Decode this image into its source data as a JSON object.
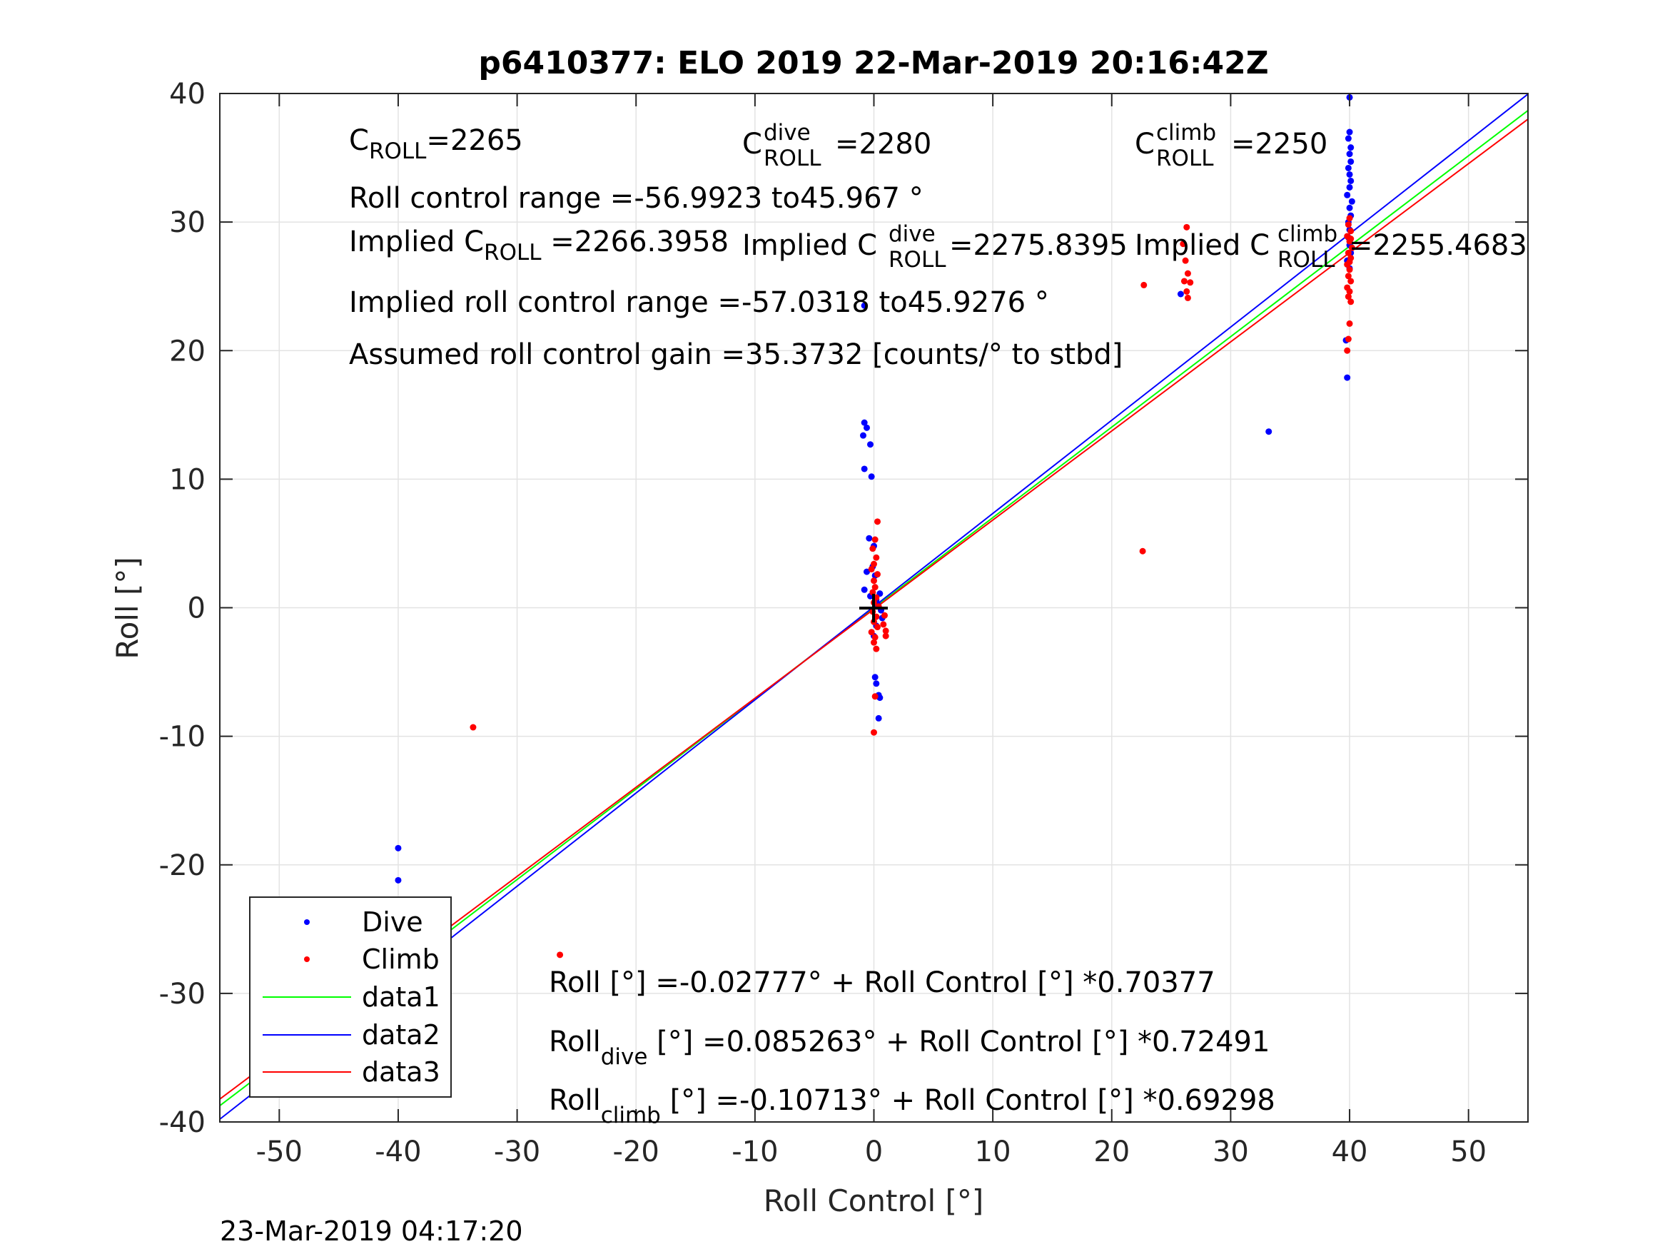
{
  "chart_data": {
    "type": "scatter",
    "title": "p6410377: ELO 2019 22-Mar-2019 20:16:42Z",
    "xlabel": "Roll Control [°]",
    "ylabel": "Roll [°]",
    "xlim": [
      -55,
      55
    ],
    "ylim": [
      -40,
      40
    ],
    "xticks": [
      -50,
      -40,
      -30,
      -20,
      -10,
      0,
      10,
      20,
      30,
      40,
      50
    ],
    "yticks": [
      -40,
      -30,
      -20,
      -10,
      0,
      10,
      20,
      30,
      40
    ],
    "grid": true,
    "legend_position": "bottom-left",
    "timestamp": "23-Mar-2019 04:17:20",
    "annotations": {
      "c_roll": {
        "base": "C",
        "sub": "ROLL",
        "value": "=2265"
      },
      "c_roll_dive": {
        "base": "C",
        "sup": "dive",
        "sub": "ROLL",
        "value": "=2280"
      },
      "c_roll_climb": {
        "base": "C",
        "sup": "climb",
        "sub": "ROLL",
        "value": "=2250"
      },
      "roll_control_range": "Roll control range =-56.9923 to45.967 °",
      "implied_c_roll": {
        "prefix": "Implied C",
        "sub": "ROLL",
        "value": " =2266.3958"
      },
      "implied_c_roll_dive": {
        "prefix": "Implied C",
        "sup": "dive",
        "sub": "ROLL",
        "value": " =2275.8395"
      },
      "implied_c_roll_climb": {
        "prefix": "Implied C",
        "sup": "climb",
        "sub": "ROLL",
        "value": "=2255.4683"
      },
      "implied_range": "Implied roll control range =-57.0318 to45.9276 °",
      "assumed_gain": "Assumed roll control gain =35.3732 [counts/° to stbd]",
      "fit_all": "Roll [°] =-0.02777° + Roll Control [°] *0.70377",
      "fit_dive": {
        "base": "Roll",
        "sub": "dive",
        "rest": " [°] =0.085263° + Roll Control [°] *0.72491"
      },
      "fit_climb": {
        "base": "Roll",
        "sub": "climb",
        "rest": " [°] =-0.10713° + Roll Control [°] *0.69298"
      }
    },
    "series": [
      {
        "name": "Dive",
        "kind": "points",
        "color": "#0000ff",
        "points": [
          [
            -40,
            -18.7
          ],
          [
            -40,
            -21.2
          ],
          [
            -40,
            -25.6
          ],
          [
            -40.2,
            -26.3
          ],
          [
            -39.8,
            -26.8
          ],
          [
            -40,
            -27.4
          ],
          [
            -40.1,
            -27.9
          ],
          [
            -39.9,
            -28.3
          ],
          [
            -40,
            -28.8
          ],
          [
            -40.2,
            -29.3
          ],
          [
            -39.8,
            -29.8
          ],
          [
            -40,
            -27.1
          ],
          [
            -40.1,
            -28.6
          ],
          [
            -0.8,
            23.5
          ],
          [
            -0.8,
            14.4
          ],
          [
            -0.6,
            14.0
          ],
          [
            -0.9,
            13.4
          ],
          [
            -0.3,
            12.7
          ],
          [
            -0.8,
            10.8
          ],
          [
            -0.2,
            10.2
          ],
          [
            -0.4,
            5.4
          ],
          [
            0,
            4.8
          ],
          [
            -0.1,
            3.2
          ],
          [
            -0.6,
            2.8
          ],
          [
            0.1,
            2.5
          ],
          [
            -0.8,
            1.4
          ],
          [
            -0.3,
            0.9
          ],
          [
            0.2,
            0.6
          ],
          [
            0.5,
            1.1
          ],
          [
            0.3,
            0.3
          ],
          [
            0.6,
            -0.2
          ],
          [
            0.7,
            -0.8
          ],
          [
            0.2,
            -1.4
          ],
          [
            0,
            -2.2
          ],
          [
            0.1,
            -5.4
          ],
          [
            0.2,
            -5.9
          ],
          [
            0.5,
            -7.0
          ],
          [
            0.4,
            -8.6
          ],
          [
            0.4,
            -6.8
          ],
          [
            25.8,
            24.4
          ],
          [
            33.2,
            13.7
          ],
          [
            40,
            39.7
          ],
          [
            40,
            37.0
          ],
          [
            39.9,
            36.5
          ],
          [
            40.1,
            35.8
          ],
          [
            40,
            35.3
          ],
          [
            40.1,
            34.7
          ],
          [
            39.9,
            34.2
          ],
          [
            40,
            33.7
          ],
          [
            40.1,
            33.2
          ],
          [
            40,
            32.7
          ],
          [
            39.8,
            32.1
          ],
          [
            40.2,
            31.6
          ],
          [
            40,
            31.1
          ],
          [
            40.1,
            30.5
          ],
          [
            39.9,
            30.0
          ],
          [
            40,
            29.4
          ],
          [
            39.9,
            28.8
          ],
          [
            40,
            28.2
          ],
          [
            40.1,
            27.6
          ],
          [
            39.8,
            27.0
          ],
          [
            40,
            26.4
          ],
          [
            39.7,
            20.8
          ],
          [
            39.8,
            17.9
          ]
        ]
      },
      {
        "name": "Climb",
        "kind": "points",
        "color": "#ff0000",
        "points": [
          [
            -33.7,
            -9.3
          ],
          [
            -26.4,
            -27.0
          ],
          [
            -40,
            -25.0
          ],
          [
            -40.1,
            -26.1
          ],
          [
            -39.9,
            -26.6
          ],
          [
            -40,
            -27.3
          ],
          [
            -39.8,
            -27.8
          ],
          [
            -40.1,
            -28.4
          ],
          [
            -40,
            -28.9
          ],
          [
            0.3,
            6.7
          ],
          [
            0.1,
            5.3
          ],
          [
            -0.1,
            4.6
          ],
          [
            0.2,
            3.9
          ],
          [
            0,
            3.4
          ],
          [
            -0.2,
            3.0
          ],
          [
            0.3,
            2.6
          ],
          [
            0,
            2.1
          ],
          [
            0.1,
            1.6
          ],
          [
            -0.1,
            1.2
          ],
          [
            0.2,
            0.8
          ],
          [
            0,
            0.4
          ],
          [
            0.4,
            0.1
          ],
          [
            -0.1,
            -0.3
          ],
          [
            0.2,
            -0.7
          ],
          [
            0,
            -1.1
          ],
          [
            0.3,
            -1.5
          ],
          [
            -0.2,
            -1.9
          ],
          [
            0.1,
            -2.3
          ],
          [
            0,
            -2.7
          ],
          [
            0.2,
            -3.2
          ],
          [
            0.8,
            -1.3
          ],
          [
            1.0,
            -1.8
          ],
          [
            1.0,
            -2.2
          ],
          [
            0.9,
            -0.6
          ],
          [
            0.1,
            -6.9
          ],
          [
            0,
            -9.7
          ],
          [
            22.7,
            25.1
          ],
          [
            22.6,
            4.4
          ],
          [
            26.3,
            29.6
          ],
          [
            26.0,
            28.3
          ],
          [
            26.2,
            27.0
          ],
          [
            26.4,
            26.0
          ],
          [
            26.1,
            25.4
          ],
          [
            26.6,
            25.3
          ],
          [
            26.3,
            24.6
          ],
          [
            26.4,
            24.1
          ],
          [
            40,
            30.3
          ],
          [
            39.9,
            29.8
          ],
          [
            40.1,
            29.3
          ],
          [
            39.8,
            28.9
          ],
          [
            40,
            28.5
          ],
          [
            40.2,
            28.0
          ],
          [
            39.9,
            27.6
          ],
          [
            40.1,
            27.2
          ],
          [
            39.8,
            26.7
          ],
          [
            40,
            26.3
          ],
          [
            39.9,
            25.8
          ],
          [
            40.1,
            25.4
          ],
          [
            39.8,
            24.9
          ],
          [
            40,
            24.6
          ],
          [
            39.9,
            24.2
          ],
          [
            40.1,
            23.8
          ],
          [
            40,
            22.1
          ],
          [
            39.9,
            20.9
          ],
          [
            39.8,
            20.0
          ],
          [
            40,
            26.9
          ],
          [
            40.1,
            28.7
          ]
        ]
      },
      {
        "name": "data1",
        "kind": "line",
        "color": "#00ff00",
        "intercept": -0.02777,
        "slope": 0.70377
      },
      {
        "name": "data2",
        "kind": "line",
        "color": "#0000ff",
        "intercept": 0.085263,
        "slope": 0.72491
      },
      {
        "name": "data3",
        "kind": "line",
        "color": "#ff0000",
        "intercept": -0.10713,
        "slope": 0.69298
      }
    ]
  }
}
